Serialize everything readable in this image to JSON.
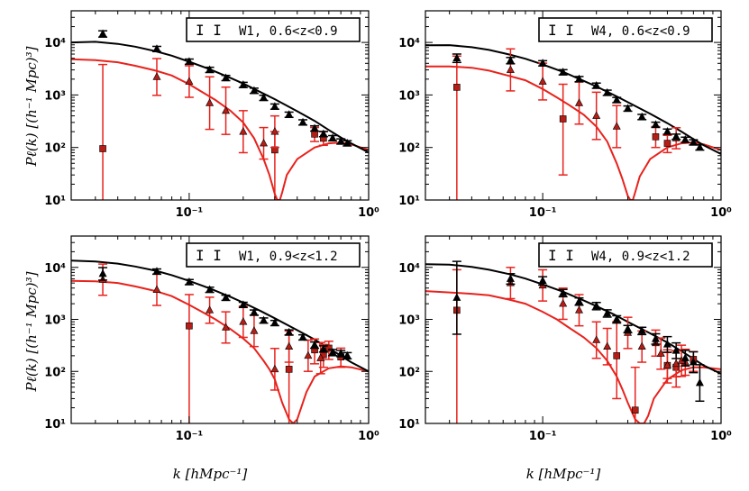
{
  "figure": {
    "ylabel": "Pℓ(k) [(h⁻¹ Mpc)³]",
    "xlabel": "k [hMpc⁻¹]"
  },
  "chart_data": [
    {
      "type": "line",
      "legend": "W1, 0.6<z<0.9",
      "legend_glyph": "I I",
      "xscale": "log",
      "yscale": "log",
      "xlim": [
        0.022,
        1.0
      ],
      "ylim": [
        10,
        40000
      ],
      "x_ticks": [
        "10⁻¹",
        "10⁰"
      ],
      "y_ticks": [
        "10¹",
        "10²",
        "10³",
        "10⁴"
      ],
      "monopole_model": {
        "x": [
          0.022,
          0.03,
          0.04,
          0.05,
          0.065,
          0.08,
          0.1,
          0.13,
          0.17,
          0.2,
          0.25,
          0.3,
          0.4,
          0.5,
          0.6,
          0.7,
          0.8,
          1.0
        ],
        "y": [
          10000,
          10300,
          9400,
          8300,
          6800,
          5600,
          4300,
          3100,
          2100,
          1650,
          1130,
          830,
          490,
          320,
          215,
          155,
          120,
          80
        ]
      },
      "quadrupole_model": {
        "x": [
          0.022,
          0.03,
          0.04,
          0.05,
          0.065,
          0.08,
          0.1,
          0.12,
          0.14,
          0.17,
          0.2,
          0.23,
          0.26,
          0.28,
          0.3,
          0.31,
          0.32,
          0.33,
          0.35,
          0.4,
          0.5,
          0.6,
          0.7,
          0.8,
          1.0
        ],
        "y": [
          4800,
          4600,
          4200,
          3600,
          2900,
          2350,
          1600,
          1100,
          800,
          500,
          300,
          150,
          60,
          30,
          13,
          10,
          10,
          14,
          30,
          60,
          100,
          120,
          125,
          115,
          90
        ]
      },
      "monopole_points": {
        "x": [
          0.033,
          0.066,
          0.1,
          0.13,
          0.16,
          0.2,
          0.23,
          0.26,
          0.3,
          0.36,
          0.43,
          0.5,
          0.56,
          0.63,
          0.7,
          0.76
        ],
        "y": [
          14500,
          7500,
          4300,
          3000,
          2100,
          1550,
          1200,
          880,
          600,
          420,
          300,
          230,
          180,
          150,
          130,
          120
        ],
        "err": [
          0.06,
          0.05,
          0.05,
          0.05,
          0.05,
          0.05,
          0.05,
          0.05,
          0.05,
          0.05,
          0.05,
          0.05,
          0.05,
          0.05,
          0.05,
          0.05
        ]
      },
      "quadrupole_triangles": {
        "x": [
          0.066,
          0.1,
          0.13,
          0.16,
          0.2
        ],
        "y": [
          2200,
          1800,
          700,
          500,
          200
        ],
        "err": [
          0.35,
          0.3,
          0.5,
          0.45,
          0.4
        ]
      },
      "quadrupole_squares": {
        "x": [
          0.033,
          0.3,
          0.5,
          0.56
        ],
        "y": [
          95,
          90,
          180,
          150
        ],
        "lo": [
          10,
          10,
          130,
          110
        ],
        "hi": [
          3800,
          200,
          240,
          200
        ]
      },
      "hexadecapole_triangles": {
        "x": [
          0.26,
          0.3
        ],
        "y": [
          120,
          200
        ],
        "err": [
          0.3,
          0.3
        ]
      }
    },
    {
      "type": "line",
      "legend": "W4, 0.6<z<0.9",
      "legend_glyph": "I I",
      "xscale": "log",
      "yscale": "log",
      "xlim": [
        0.022,
        1.0
      ],
      "ylim": [
        10,
        40000
      ],
      "x_ticks": [
        "10⁻¹",
        "10⁰"
      ],
      "y_ticks": [
        "10¹",
        "10²",
        "10³",
        "10⁴"
      ],
      "monopole_model": {
        "x": [
          0.022,
          0.03,
          0.04,
          0.05,
          0.065,
          0.08,
          0.1,
          0.13,
          0.17,
          0.2,
          0.25,
          0.3,
          0.4,
          0.5,
          0.6,
          0.7,
          0.8,
          1.0
        ],
        "y": [
          8800,
          8900,
          8100,
          7200,
          5900,
          4900,
          3800,
          2750,
          1850,
          1450,
          1000,
          730,
          440,
          290,
          200,
          145,
          110,
          75
        ]
      },
      "quadrupole_model": {
        "x": [
          0.022,
          0.03,
          0.04,
          0.05,
          0.065,
          0.08,
          0.1,
          0.12,
          0.14,
          0.17,
          0.2,
          0.23,
          0.26,
          0.28,
          0.3,
          0.31,
          0.32,
          0.33,
          0.35,
          0.4,
          0.5,
          0.6,
          0.7,
          0.8,
          1.0
        ],
        "y": [
          3500,
          3500,
          3300,
          2900,
          2300,
          1900,
          1300,
          900,
          650,
          420,
          250,
          130,
          50,
          25,
          12,
          10,
          10,
          14,
          28,
          60,
          100,
          120,
          125,
          115,
          90
        ]
      },
      "monopole_points": {
        "x": [
          0.033,
          0.066,
          0.1,
          0.13,
          0.16,
          0.2,
          0.23,
          0.26,
          0.3,
          0.36,
          0.43,
          0.5,
          0.56,
          0.63,
          0.7,
          0.76
        ],
        "y": [
          5000,
          4500,
          4000,
          2700,
          2000,
          1500,
          1100,
          800,
          550,
          380,
          270,
          200,
          160,
          140,
          125,
          100
        ],
        "err": [
          0.08,
          0.06,
          0.05,
          0.05,
          0.05,
          0.05,
          0.05,
          0.05,
          0.05,
          0.05,
          0.05,
          0.05,
          0.05,
          0.05,
          0.05,
          0.05
        ]
      },
      "quadrupole_triangles": {
        "x": [
          0.066,
          0.1,
          0.16,
          0.2
        ],
        "y": [
          3000,
          1800,
          700,
          400
        ],
        "err": [
          0.4,
          0.35,
          0.4,
          0.45
        ]
      },
      "quadrupole_squares": {
        "x": [
          0.033,
          0.13,
          0.43,
          0.5
        ],
        "y": [
          1400,
          350,
          160,
          120
        ],
        "lo": [
          10,
          30,
          100,
          80
        ],
        "hi": [
          5500,
          1600,
          250,
          170
        ]
      },
      "hexadecapole_triangles": {
        "x": [
          0.26,
          0.56
        ],
        "y": [
          250,
          150
        ],
        "err": [
          0.4,
          0.2
        ]
      }
    },
    {
      "type": "line",
      "legend": "W1, 0.9<z<1.2",
      "legend_glyph": "I I",
      "xscale": "log",
      "yscale": "log",
      "xlim": [
        0.022,
        1.0
      ],
      "ylim": [
        10,
        40000
      ],
      "x_ticks": [
        "10⁻¹",
        "10⁰"
      ],
      "y_ticks": [
        "10¹",
        "10²",
        "10³",
        "10⁴"
      ],
      "monopole_model": {
        "x": [
          0.022,
          0.03,
          0.04,
          0.05,
          0.065,
          0.08,
          0.1,
          0.13,
          0.17,
          0.2,
          0.25,
          0.3,
          0.4,
          0.5,
          0.6,
          0.7,
          0.8,
          1.0
        ],
        "y": [
          13500,
          13000,
          11800,
          10400,
          8600,
          7100,
          5500,
          3950,
          2700,
          2100,
          1450,
          1050,
          620,
          410,
          280,
          200,
          150,
          100
        ]
      },
      "quadrupole_model": {
        "x": [
          0.022,
          0.03,
          0.04,
          0.05,
          0.065,
          0.08,
          0.1,
          0.12,
          0.14,
          0.17,
          0.2,
          0.23,
          0.26,
          0.28,
          0.3,
          0.33,
          0.36,
          0.38,
          0.4,
          0.45,
          0.5,
          0.6,
          0.7,
          0.8,
          1.0
        ],
        "y": [
          5500,
          5400,
          5000,
          4300,
          3500,
          2800,
          1900,
          1350,
          1000,
          650,
          430,
          280,
          160,
          110,
          70,
          25,
          12,
          10,
          12,
          40,
          80,
          115,
          125,
          120,
          100
        ]
      },
      "monopole_points": {
        "x": [
          0.033,
          0.066,
          0.1,
          0.13,
          0.16,
          0.2,
          0.23,
          0.26,
          0.3,
          0.36,
          0.43,
          0.5,
          0.56,
          0.63,
          0.7,
          0.76
        ],
        "y": [
          7500,
          8300,
          5200,
          3700,
          2600,
          1900,
          1350,
          950,
          850,
          560,
          450,
          320,
          270,
          230,
          220,
          200
        ],
        "err": [
          0.12,
          0.05,
          0.05,
          0.05,
          0.05,
          0.05,
          0.05,
          0.05,
          0.05,
          0.05,
          0.05,
          0.06,
          0.06,
          0.06,
          0.06,
          0.06
        ]
      },
      "quadrupole_triangles": {
        "x": [
          0.033,
          0.066,
          0.13,
          0.16,
          0.2,
          0.23,
          0.3,
          0.36
        ],
        "y": [
          5800,
          3700,
          1500,
          700,
          900,
          600,
          110,
          300
        ],
        "err": [
          0.3,
          0.3,
          0.25,
          0.3,
          0.3,
          0.3,
          0.4,
          0.3
        ]
      },
      "quadrupole_squares": {
        "x": [
          0.1,
          0.36,
          0.5,
          0.56,
          0.6,
          0.7
        ],
        "y": [
          750,
          110,
          260,
          210,
          280,
          190
        ],
        "lo": [
          10,
          10,
          140,
          120,
          170,
          120
        ],
        "hi": [
          3000,
          500,
          420,
          330,
          380,
          280
        ]
      },
      "hexadecapole_triangles": {
        "x": [
          0.46,
          0.54
        ],
        "y": [
          200,
          180
        ],
        "err": [
          0.3,
          0.3
        ]
      }
    },
    {
      "type": "line",
      "legend": "W4, 0.9<z<1.2",
      "legend_glyph": "I I",
      "xscale": "log",
      "yscale": "log",
      "xlim": [
        0.022,
        1.0
      ],
      "ylim": [
        10,
        40000
      ],
      "x_ticks": [
        "10⁻¹",
        "10⁰"
      ],
      "y_ticks": [
        "10¹",
        "10²",
        "10³",
        "10⁴"
      ],
      "monopole_model": {
        "x": [
          0.022,
          0.03,
          0.04,
          0.05,
          0.065,
          0.08,
          0.1,
          0.13,
          0.17,
          0.2,
          0.25,
          0.3,
          0.4,
          0.5,
          0.6,
          0.7,
          0.8,
          1.0
        ],
        "y": [
          11500,
          11300,
          10200,
          9000,
          7400,
          6100,
          4700,
          3400,
          2300,
          1800,
          1250,
          900,
          540,
          360,
          245,
          175,
          130,
          90
        ]
      },
      "quadrupole_model": {
        "x": [
          0.022,
          0.03,
          0.04,
          0.05,
          0.065,
          0.08,
          0.1,
          0.12,
          0.14,
          0.17,
          0.2,
          0.23,
          0.26,
          0.28,
          0.3,
          0.33,
          0.35,
          0.37,
          0.39,
          0.42,
          0.5,
          0.6,
          0.7,
          0.8,
          1.0
        ],
        "y": [
          3500,
          3300,
          3100,
          2900,
          2400,
          2000,
          1400,
          1000,
          700,
          450,
          280,
          160,
          80,
          45,
          25,
          12,
          10,
          10,
          14,
          30,
          70,
          105,
          120,
          120,
          110
        ]
      },
      "monopole_points": {
        "x": [
          0.033,
          0.066,
          0.1,
          0.13,
          0.16,
          0.2,
          0.23,
          0.26,
          0.3,
          0.36,
          0.43,
          0.5,
          0.56,
          0.63,
          0.7,
          0.76
        ],
        "y": [
          2600,
          6000,
          5500,
          3200,
          2200,
          1800,
          1300,
          1000,
          650,
          600,
          420,
          330,
          250,
          180,
          150,
          60
        ],
        "err": [
          0.7,
          0.1,
          0.08,
          0.07,
          0.07,
          0.07,
          0.07,
          0.07,
          0.07,
          0.07,
          0.1,
          0.15,
          0.15,
          0.15,
          0.2,
          0.35
        ]
      },
      "quadrupole_triangles": {
        "x": [
          0.066,
          0.1,
          0.13,
          0.16,
          0.2,
          0.23,
          0.3,
          0.36,
          0.43,
          0.5,
          0.56,
          0.63
        ],
        "y": [
          5000,
          4500,
          2000,
          1500,
          400,
          300,
          550,
          300,
          350,
          130,
          140,
          150
        ],
        "err": [
          0.3,
          0.3,
          0.3,
          0.3,
          0.35,
          0.35,
          0.3,
          0.3,
          0.25,
          0.25,
          0.25,
          0.25
        ]
      },
      "quadrupole_squares": {
        "x": [
          0.033,
          0.26,
          0.33,
          0.5,
          0.56,
          0.7
        ],
        "y": [
          1500,
          200,
          18,
          130,
          120,
          170
        ],
        "lo": [
          10,
          30,
          10,
          60,
          50,
          100
        ],
        "hi": [
          9000,
          900,
          120,
          260,
          250,
          240
        ]
      },
      "hexadecapole_triangles": {
        "x": [
          0.46,
          0.6
        ],
        "y": [
          220,
          160
        ],
        "err": [
          0.3,
          0.3
        ]
      }
    }
  ]
}
